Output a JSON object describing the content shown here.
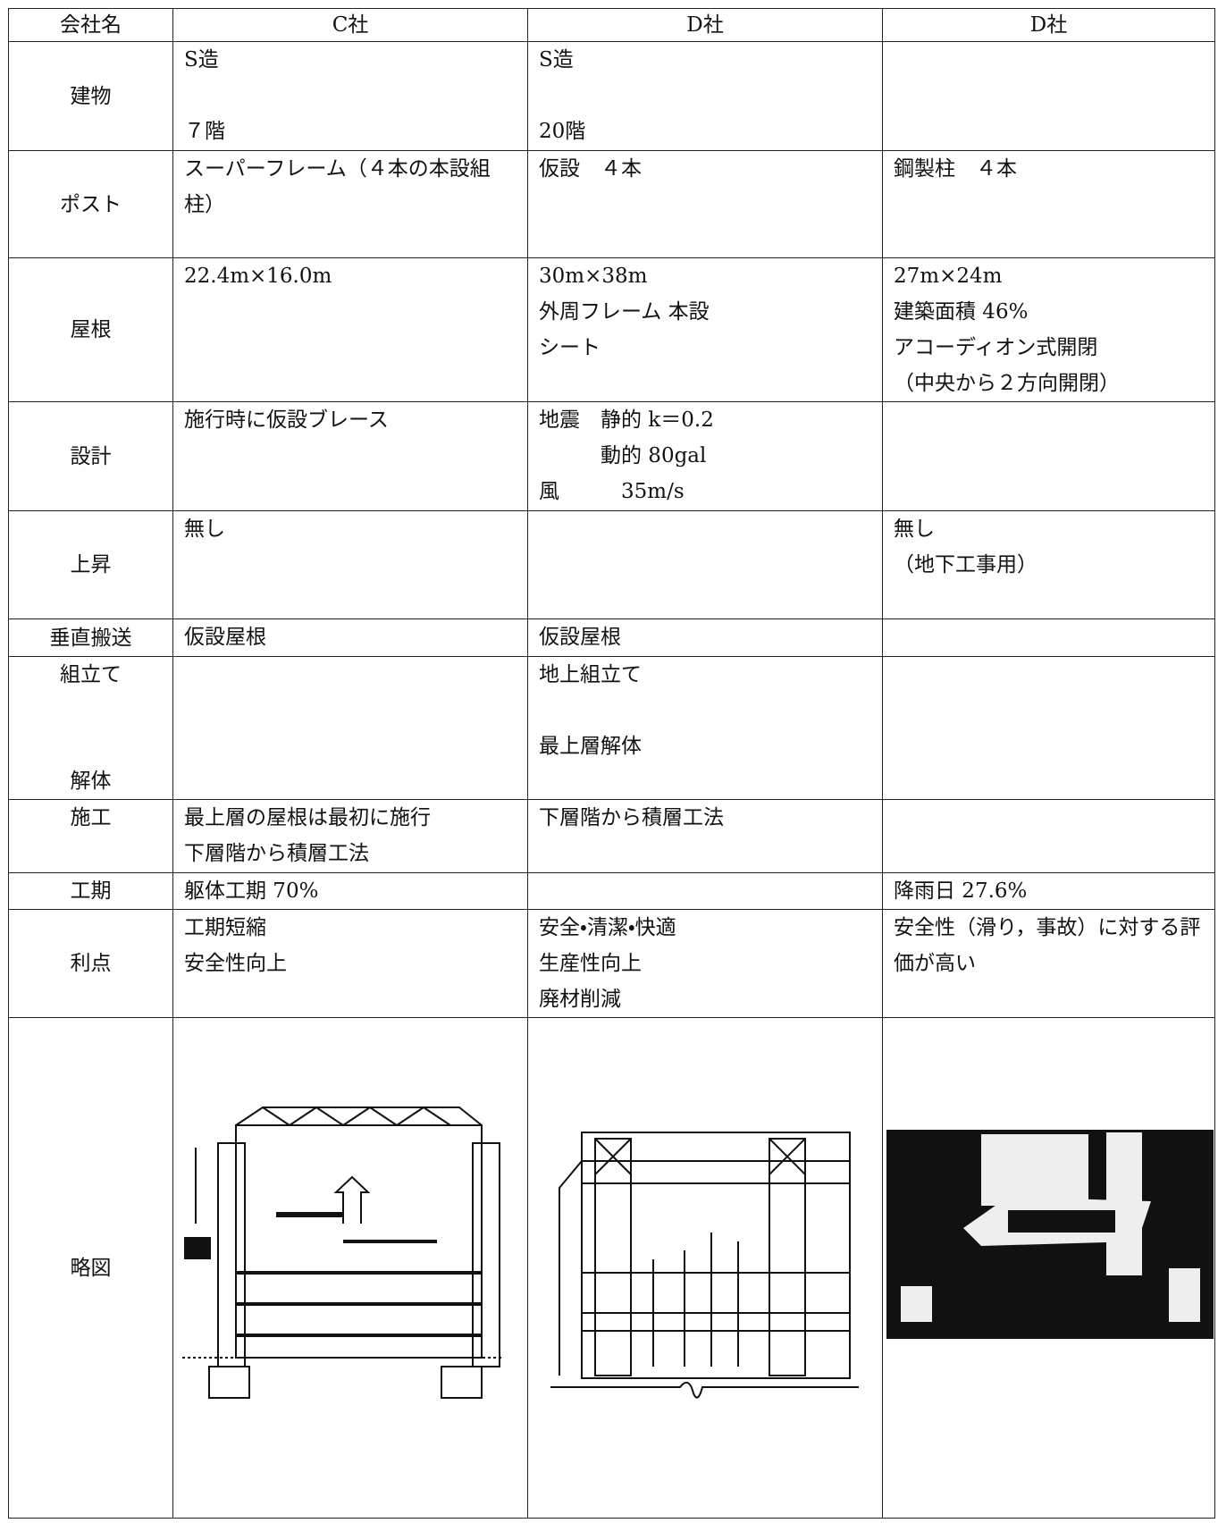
{
  "table": {
    "header": [
      "会社名",
      "C社",
      "D社",
      "D社"
    ],
    "rows": [
      {
        "label": [
          "建物"
        ],
        "cells": [
          [
            "S造",
            "７階"
          ],
          [
            "S造",
            "20階"
          ],
          []
        ]
      },
      {
        "label": [
          "ポスト"
        ],
        "cells": [
          [
            "スーパーフレーム（４本の本設組柱）"
          ],
          [
            "仮設　４本"
          ],
          [
            "鋼製柱　４本"
          ]
        ]
      },
      {
        "label": [
          "屋根"
        ],
        "cells": [
          [
            "22.4m×16.0m"
          ],
          [
            "30m×38m",
            "外周フレーム 本設",
            "シート"
          ],
          [
            "27m×24m",
            "建築面積 46%",
            "アコーディオン式開閉",
            "（中央から２方向開閉）"
          ]
        ]
      },
      {
        "label": [
          "設計"
        ],
        "cells": [
          [
            "施行時に仮設ブレース"
          ],
          [
            "地震　静的 k＝0.2",
            "　　　動的 80gal",
            "風　　　35m/s"
          ],
          []
        ]
      },
      {
        "label": [
          "上昇"
        ],
        "cells": [
          [
            "無し"
          ],
          [],
          [
            "無し",
            "（地下工事用）"
          ]
        ]
      },
      {
        "label": [
          "垂直搬送"
        ],
        "cells": [
          [
            "仮設屋根"
          ],
          [
            "仮設屋根"
          ],
          []
        ]
      },
      {
        "label": [
          "組立て",
          "解体"
        ],
        "cells": [
          [],
          [
            "地上組立て",
            "最上層解体"
          ],
          []
        ]
      },
      {
        "label": [
          "施工"
        ],
        "cells": [
          [
            "最上層の屋根は最初に施行",
            "下層階から積層工法"
          ],
          [
            "下層階から積層工法"
          ],
          []
        ]
      },
      {
        "label": [
          "工期"
        ],
        "cells": [
          [
            "躯体工期 70%"
          ],
          [],
          [
            "降雨日 27.6%"
          ]
        ]
      },
      {
        "label": [
          "利点"
        ],
        "cells": [
          [
            "工期短縮",
            "安全性向上"
          ],
          [
            "安全・清潔・快適",
            "生産性向上",
            "廃材削減"
          ],
          [
            "安全性（滑り，事故）に対する評価が高い"
          ]
        ]
      }
    ],
    "figure_row": {
      "label": "略図"
    }
  }
}
